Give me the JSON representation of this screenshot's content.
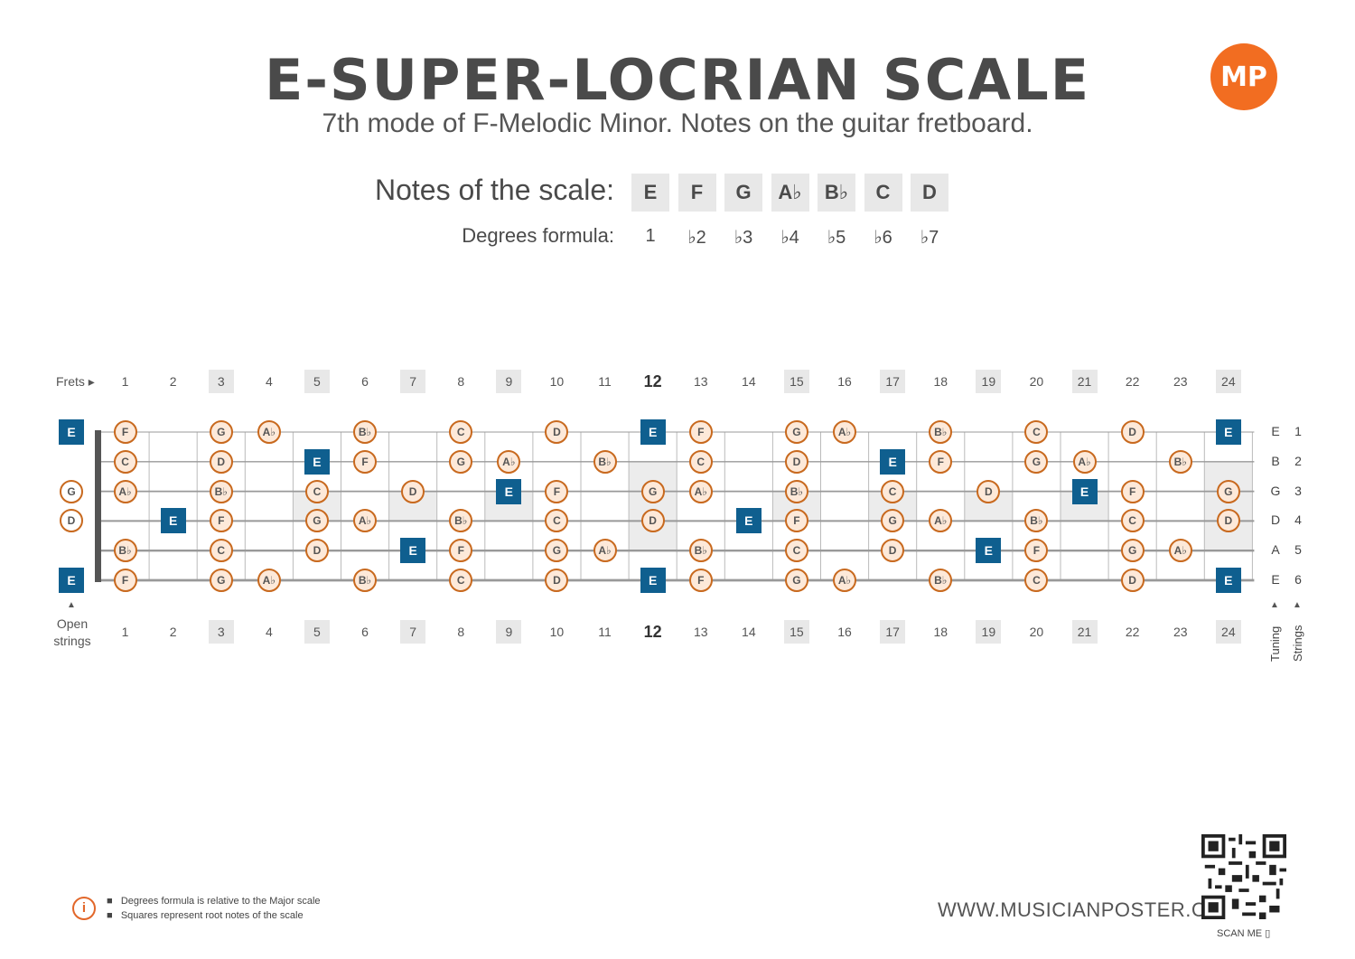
{
  "title": "E-SUPER-LOCRIAN SCALE",
  "subtitle": "7th mode of F-Melodic Minor. Notes on the guitar fretboard.",
  "logo_text": "MP",
  "scale": {
    "notes_label": "Notes of the scale:",
    "degrees_label": "Degrees formula:",
    "notes": [
      "E",
      "F",
      "G",
      "A♭",
      "B♭",
      "C",
      "D"
    ],
    "degrees": [
      "1",
      "♭2",
      "♭3",
      "♭4",
      "♭5",
      "♭6",
      "♭7"
    ]
  },
  "fretboard": {
    "frets_label": "Frets ▸",
    "fret_numbers": [
      "1",
      "2",
      "3",
      "4",
      "5",
      "6",
      "7",
      "8",
      "9",
      "10",
      "11",
      "12",
      "13",
      "14",
      "15",
      "16",
      "17",
      "18",
      "19",
      "20",
      "21",
      "22",
      "23",
      "24"
    ],
    "marked_frets": [
      3,
      5,
      7,
      9,
      12,
      15,
      17,
      19,
      21,
      24
    ],
    "open_strings_label": "Open strings",
    "tuning_label": "Tuning",
    "strings_label": "Strings",
    "strings": [
      {
        "tuning": "E",
        "number": "1",
        "open": "E",
        "open_root": true,
        "notes": [
          "F",
          "",
          "G",
          "A♭",
          "",
          "B♭",
          "",
          "C",
          "",
          "D",
          "",
          "E",
          "F",
          "",
          "G",
          "A♭",
          "",
          "B♭",
          "",
          "C",
          "",
          "D",
          "",
          "E"
        ]
      },
      {
        "tuning": "B",
        "number": "2",
        "open": "",
        "open_root": false,
        "notes": [
          "C",
          "",
          "D",
          "",
          "E",
          "F",
          "",
          "G",
          "A♭",
          "",
          "B♭",
          "",
          "C",
          "",
          "D",
          "",
          "E",
          "F",
          "",
          "G",
          "A♭",
          "",
          "B♭",
          ""
        ]
      },
      {
        "tuning": "G",
        "number": "3",
        "open": "G",
        "open_root": false,
        "notes": [
          "A♭",
          "",
          "B♭",
          "",
          "C",
          "",
          "D",
          "",
          "E",
          "F",
          "",
          "G",
          "A♭",
          "",
          "B♭",
          "",
          "C",
          "",
          "D",
          "",
          "E",
          "F",
          "",
          "G"
        ]
      },
      {
        "tuning": "D",
        "number": "4",
        "open": "D",
        "open_root": false,
        "notes": [
          "",
          "E",
          "F",
          "",
          "G",
          "A♭",
          "",
          "B♭",
          "",
          "C",
          "",
          "D",
          "",
          "E",
          "F",
          "",
          "G",
          "A♭",
          "",
          "B♭",
          "",
          "C",
          "",
          "D"
        ]
      },
      {
        "tuning": "A",
        "number": "5",
        "open": "",
        "open_root": false,
        "notes": [
          "B♭",
          "",
          "C",
          "",
          "D",
          "",
          "E",
          "F",
          "",
          "G",
          "A♭",
          "",
          "B♭",
          "",
          "C",
          "",
          "D",
          "",
          "E",
          "F",
          "",
          "G",
          "A♭",
          ""
        ]
      },
      {
        "tuning": "E",
        "number": "6",
        "open": "E",
        "open_root": true,
        "notes": [
          "F",
          "",
          "G",
          "A♭",
          "",
          "B♭",
          "",
          "C",
          "",
          "D",
          "",
          "E",
          "F",
          "",
          "G",
          "A♭",
          "",
          "B♭",
          "",
          "C",
          "",
          "D",
          "",
          "E"
        ]
      }
    ],
    "shaded_cells": [
      {
        "fret": 12,
        "strings": [
          2,
          3,
          4,
          5
        ]
      },
      {
        "fret": 5,
        "strings": [
          3,
          4
        ]
      },
      {
        "fret": 7,
        "strings": [
          3,
          4
        ]
      },
      {
        "fret": 9,
        "strings": [
          3,
          4
        ]
      },
      {
        "fret": 15,
        "strings": [
          3,
          4
        ]
      },
      {
        "fret": 17,
        "strings": [
          3,
          4
        ]
      },
      {
        "fret": 19,
        "strings": [
          3,
          4
        ]
      },
      {
        "fret": 21,
        "strings": [
          3,
          4
        ]
      },
      {
        "fret": 24,
        "strings": [
          2,
          3,
          4,
          5
        ]
      }
    ]
  },
  "legend": {
    "items": [
      "Degrees formula is relative to the Major scale",
      "Squares represent root notes of the scale"
    ]
  },
  "website": "WWW.MUSICIANPOSTER.COM",
  "scan_me": "SCAN ME",
  "colors": {
    "root": "#0f5f8f",
    "note_border": "#c8691e",
    "note_fill": "#fde9d9",
    "accent": "#f26d21"
  }
}
